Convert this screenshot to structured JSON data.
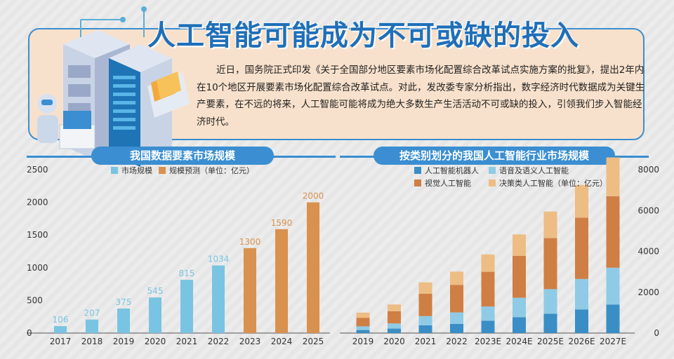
{
  "title": "人工智能可能成为不可或缺的投入",
  "summary": "近日，国务院正式印发《关于全国部分地区要素市场化配置综合改革试点实施方案的批复》，提出2年内在10个地区开展要素市场化配置综合改革试点。对此，发改委专家分析指出，数字经济时代数据成为关键生产要素，在不远的将来，人工智能可能将成为绝大多数生产生活活动不可或缺的投入，引领我们步入智能经济时代。",
  "colors": {
    "accent": "#3a8ed1",
    "market": "#79c4e2",
    "forecast": "#d9914f",
    "robot": "#3a8ec6",
    "speech": "#8fcbe6",
    "vision": "#cf7f44",
    "decision": "#edbd84"
  },
  "chart_data": [
    {
      "type": "bar",
      "title": "我国数据要素市场规模",
      "categories": [
        "2017",
        "2018",
        "2019",
        "2020",
        "2021",
        "2022",
        "2023",
        "2024",
        "2025"
      ],
      "values": [
        106,
        207,
        375,
        545,
        815,
        1034,
        1300,
        1590,
        2000
      ],
      "legend": [
        "市场规模",
        "规模预测（单位：亿元）"
      ],
      "forecast_from": "2023",
      "ylim": [
        0,
        2500
      ],
      "yticks": [
        0,
        500,
        1000,
        1500,
        2000,
        2500
      ],
      "legend_position": "top-left",
      "grid": false
    },
    {
      "type": "bar",
      "stacked": true,
      "title": "按类别划分的我国人工智能行业市场规模",
      "categories": [
        "2019",
        "2020",
        "2021",
        "2022",
        "2023E",
        "2024E",
        "2025E",
        "2026E",
        "2027E"
      ],
      "series": [
        {
          "name": "人工智能机器人",
          "values": [
            150,
            220,
            380,
            450,
            600,
            780,
            950,
            1150,
            1400
          ]
        },
        {
          "name": "语音及语义人工智能",
          "values": [
            180,
            250,
            450,
            560,
            700,
            950,
            1200,
            1500,
            1800
          ]
        },
        {
          "name": "视觉人工智能",
          "values": [
            420,
            600,
            1100,
            1350,
            1700,
            2050,
            2500,
            3000,
            3500
          ]
        },
        {
          "name": "决策类人工智能（单位：亿元）",
          "values": [
            250,
            330,
            550,
            650,
            850,
            1050,
            1300,
            1600,
            1900
          ]
        }
      ],
      "ylim": [
        0,
        8000
      ],
      "yticks": [
        0,
        2000,
        4000,
        6000,
        8000
      ],
      "yaxis_side": "right",
      "legend_position": "top-left",
      "grid": false
    }
  ]
}
